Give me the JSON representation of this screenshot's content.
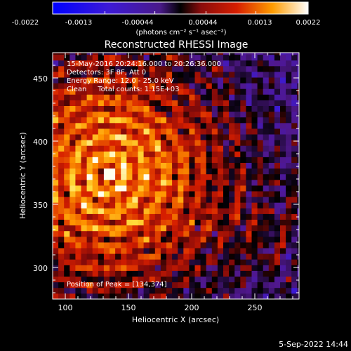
{
  "chart_data": {
    "type": "heatmap",
    "title": "Reconstructed RHESSI Image",
    "xlabel": "Heliocentric X (arcsec)",
    "ylabel": "Heliocentric Y (arcsec)",
    "xlim": [
      90,
      285
    ],
    "ylim": [
      275,
      470
    ],
    "xticks": [
      100,
      150,
      200,
      250
    ],
    "yticks": [
      300,
      350,
      400,
      450
    ],
    "annotations": [
      "15-May-2016 20:24:16.000 to 20:26:36.000",
      "Detectors: 3F 8F, Att 0",
      "Energy Range: 12.0 - 25.0 keV",
      "Clean     Total counts: 1.15E+03"
    ],
    "peak_label": "Position of Peak = [134,374]",
    "peak": {
      "x": 134,
      "y": 374
    },
    "colorbar": {
      "ticks": [
        "-0.0022",
        "-0.0013",
        "-0.00044",
        "0.00044",
        "0.0013",
        "0.0022"
      ],
      "unit_label": "(photons cm⁻² s⁻¹ asec⁻²)",
      "range": [
        -0.0022,
        0.0022
      ]
    },
    "footer_date": "5-Sep-2022 14:44",
    "colors": {
      "background": "#000000",
      "text": "#ffffff",
      "colormap": [
        "#1a1aff",
        "#5a22c8",
        "#000000",
        "#8c1010",
        "#d21a00",
        "#ff7000",
        "#ffd000",
        "#ffffe0"
      ]
    }
  }
}
